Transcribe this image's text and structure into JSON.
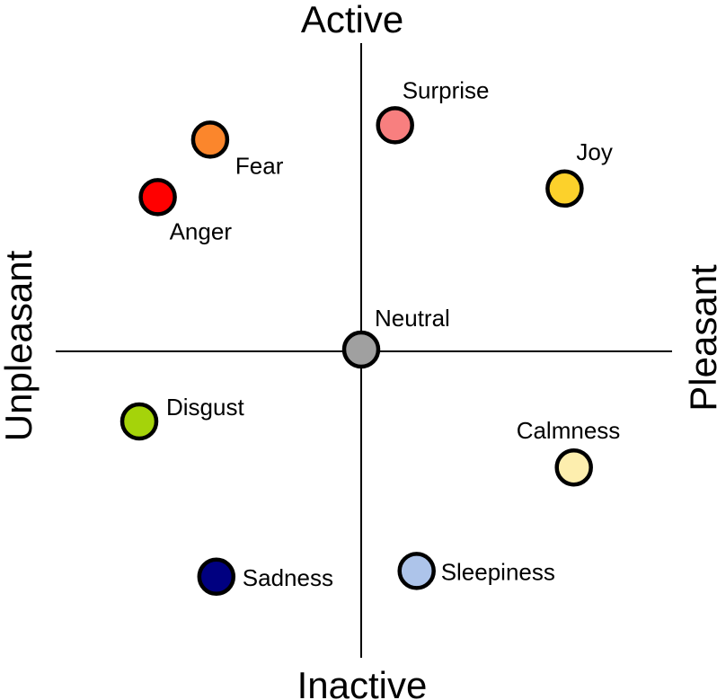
{
  "axes": {
    "top": "Active",
    "bottom": "Inactive",
    "left": "Unpleasant",
    "right": "Pleasant"
  },
  "emotions": [
    {
      "name": "Surprise",
      "color": "#f87f7f",
      "valence": 0.11,
      "arousal": 0.78
    },
    {
      "name": "Joy",
      "color": "#fcd12b",
      "valence": 0.66,
      "arousal": 0.56
    },
    {
      "name": "Fear",
      "color": "#fb862c",
      "valence": -0.49,
      "arousal": 0.73
    },
    {
      "name": "Anger",
      "color": "#ff0000",
      "valence": -0.66,
      "arousal": 0.53
    },
    {
      "name": "Neutral",
      "color": "#a0a0a0",
      "valence": 0.0,
      "arousal": 0.0
    },
    {
      "name": "Disgust",
      "color": "#a5d30a",
      "valence": -0.72,
      "arousal": -0.25
    },
    {
      "name": "Calmness",
      "color": "#fdeeae",
      "valence": 0.69,
      "arousal": -0.41
    },
    {
      "name": "Sadness",
      "color": "#000080",
      "valence": -0.47,
      "arousal": -0.79
    },
    {
      "name": "Sleepiness",
      "color": "#adc4ea",
      "valence": 0.18,
      "arousal": -0.77
    }
  ]
}
